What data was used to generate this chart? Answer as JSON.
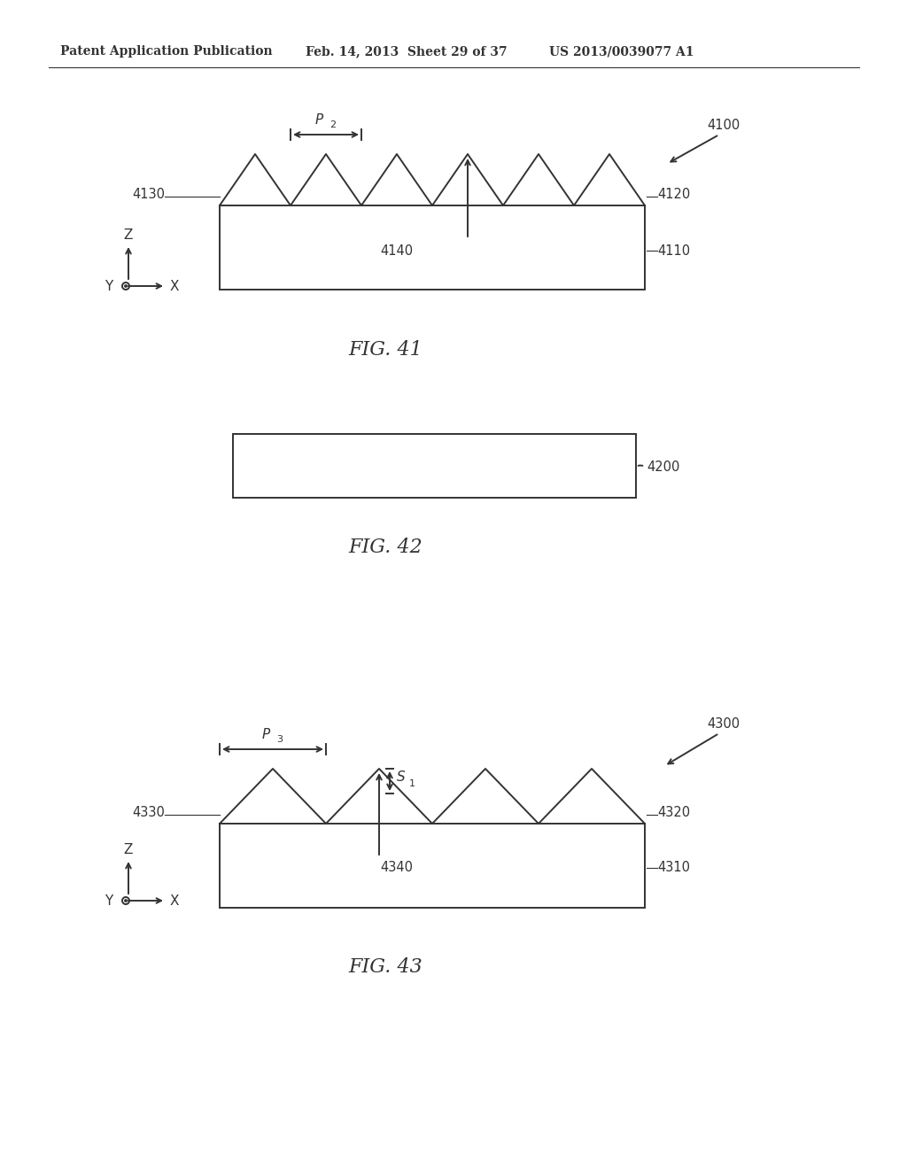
{
  "bg_color": "#ffffff",
  "header_left": "Patent Application Publication",
  "header_mid": "Feb. 14, 2013  Sheet 29 of 37",
  "header_right": "US 2013/0039077 A1",
  "fig41_title": "FIG. 41",
  "fig42_title": "FIG. 42",
  "fig43_title": "FIG. 43",
  "line_color": "#333333",
  "line_width": 1.4
}
